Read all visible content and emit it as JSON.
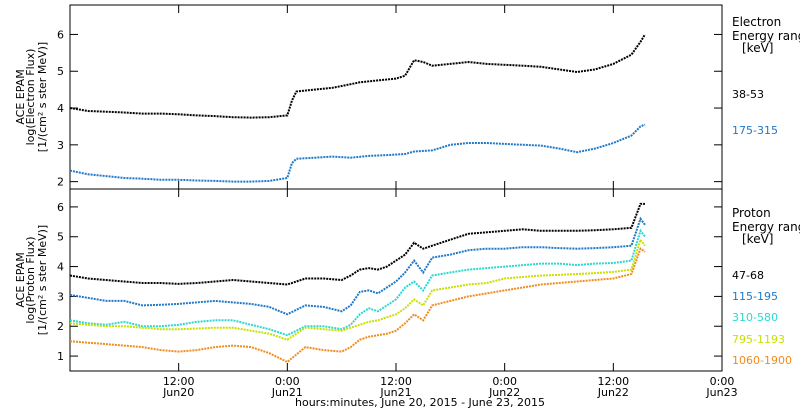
{
  "chart_data": [
    {
      "type": "line",
      "ylabel": "ACE EPAM",
      "ylabel2": "log(Electron Flux)",
      "ylabel3": "[1/(cm² s ster MeV)]",
      "ylim": [
        1.8,
        6.8
      ],
      "yticks": [
        "2",
        "3",
        "4",
        "5",
        "6"
      ],
      "legend_title": [
        "Electron",
        "Energy range",
        "[keV]"
      ],
      "series": [
        {
          "name": "38-53",
          "color": "#000000",
          "points": [
            [
              0,
              4.0
            ],
            [
              2,
              3.92
            ],
            [
              4,
              3.9
            ],
            [
              6,
              3.88
            ],
            [
              8,
              3.85
            ],
            [
              10,
              3.85
            ],
            [
              12,
              3.83
            ],
            [
              14,
              3.8
            ],
            [
              16,
              3.78
            ],
            [
              18,
              3.75
            ],
            [
              20,
              3.74
            ],
            [
              22,
              3.75
            ],
            [
              24,
              3.8
            ],
            [
              24.5,
              4.2
            ],
            [
              25,
              4.45
            ],
            [
              27,
              4.5
            ],
            [
              29,
              4.55
            ],
            [
              30,
              4.6
            ],
            [
              32,
              4.7
            ],
            [
              34,
              4.75
            ],
            [
              36,
              4.8
            ],
            [
              37,
              4.88
            ],
            [
              38,
              5.3
            ],
            [
              39,
              5.25
            ],
            [
              40,
              5.15
            ],
            [
              42,
              5.2
            ],
            [
              44,
              5.25
            ],
            [
              46,
              5.2
            ],
            [
              50,
              5.15
            ],
            [
              52,
              5.12
            ],
            [
              54,
              5.05
            ],
            [
              56,
              4.98
            ],
            [
              58,
              5.05
            ],
            [
              60,
              5.2
            ],
            [
              62,
              5.45
            ],
            [
              63,
              5.8
            ],
            [
              63.5,
              6.0
            ]
          ]
        },
        {
          "name": "175-315",
          "color": "#1f78c8",
          "points": [
            [
              0,
              2.3
            ],
            [
              2,
              2.2
            ],
            [
              4,
              2.15
            ],
            [
              6,
              2.1
            ],
            [
              8,
              2.08
            ],
            [
              10,
              2.05
            ],
            [
              12,
              2.05
            ],
            [
              14,
              2.03
            ],
            [
              16,
              2.02
            ],
            [
              18,
              2.0
            ],
            [
              20,
              2.0
            ],
            [
              22,
              2.02
            ],
            [
              24,
              2.1
            ],
            [
              24.5,
              2.5
            ],
            [
              25,
              2.62
            ],
            [
              27,
              2.65
            ],
            [
              29,
              2.68
            ],
            [
              31,
              2.65
            ],
            [
              33,
              2.7
            ],
            [
              35,
              2.72
            ],
            [
              37,
              2.75
            ],
            [
              38,
              2.82
            ],
            [
              40,
              2.85
            ],
            [
              42,
              3.0
            ],
            [
              44,
              3.05
            ],
            [
              46,
              3.05
            ],
            [
              50,
              3.0
            ],
            [
              52,
              2.98
            ],
            [
              54,
              2.9
            ],
            [
              56,
              2.8
            ],
            [
              58,
              2.9
            ],
            [
              60,
              3.05
            ],
            [
              62,
              3.25
            ],
            [
              63,
              3.5
            ],
            [
              63.5,
              3.55
            ]
          ]
        }
      ]
    },
    {
      "type": "line",
      "ylabel": "ACE EPAM",
      "ylabel2": "log(Proton Flux)",
      "ylabel3": "[1/(cm² s ster MeV)]",
      "ylim": [
        0.5,
        6.6
      ],
      "yticks": [
        "1",
        "2",
        "3",
        "4",
        "5",
        "6"
      ],
      "legend_title": [
        "Proton",
        "Energy range",
        "[keV]"
      ],
      "xlabel": "hours:minutes, June 20, 2015 - June 23, 2015",
      "xlim": [
        0,
        72
      ],
      "xticks": [
        {
          "x": 12,
          "time": "12:00",
          "date": "Jun20"
        },
        {
          "x": 24,
          "time": "0:00",
          "date": "Jun21"
        },
        {
          "x": 36,
          "time": "12:00",
          "date": "Jun21"
        },
        {
          "x": 48,
          "time": "0:00",
          "date": "Jun22"
        },
        {
          "x": 60,
          "time": "12:00",
          "date": "Jun22"
        },
        {
          "x": 72,
          "time": "0:00",
          "date": "Jun23"
        }
      ],
      "series": [
        {
          "name": "47-68",
          "color": "#000000",
          "points": [
            [
              0,
              3.7
            ],
            [
              2,
              3.6
            ],
            [
              4,
              3.55
            ],
            [
              6,
              3.5
            ],
            [
              8,
              3.45
            ],
            [
              10,
              3.45
            ],
            [
              12,
              3.42
            ],
            [
              14,
              3.45
            ],
            [
              16,
              3.5
            ],
            [
              18,
              3.55
            ],
            [
              20,
              3.5
            ],
            [
              22,
              3.45
            ],
            [
              24,
              3.4
            ],
            [
              26,
              3.6
            ],
            [
              28,
              3.6
            ],
            [
              30,
              3.55
            ],
            [
              31,
              3.7
            ],
            [
              32,
              3.9
            ],
            [
              33,
              3.95
            ],
            [
              34,
              3.9
            ],
            [
              35,
              4.0
            ],
            [
              36,
              4.2
            ],
            [
              37,
              4.4
            ],
            [
              38,
              4.8
            ],
            [
              39,
              4.6
            ],
            [
              40,
              4.7
            ],
            [
              42,
              4.9
            ],
            [
              44,
              5.1
            ],
            [
              46,
              5.15
            ],
            [
              48,
              5.2
            ],
            [
              50,
              5.25
            ],
            [
              52,
              5.2
            ],
            [
              54,
              5.2
            ],
            [
              56,
              5.2
            ],
            [
              58,
              5.22
            ],
            [
              60,
              5.25
            ],
            [
              62,
              5.3
            ],
            [
              63,
              6.1
            ],
            [
              63.5,
              6.1
            ]
          ]
        },
        {
          "name": "115-195",
          "color": "#1f78c8",
          "points": [
            [
              0,
              3.05
            ],
            [
              2,
              2.95
            ],
            [
              4,
              2.85
            ],
            [
              6,
              2.85
            ],
            [
              8,
              2.7
            ],
            [
              10,
              2.72
            ],
            [
              12,
              2.75
            ],
            [
              14,
              2.8
            ],
            [
              16,
              2.85
            ],
            [
              18,
              2.8
            ],
            [
              20,
              2.75
            ],
            [
              22,
              2.65
            ],
            [
              24,
              2.4
            ],
            [
              26,
              2.7
            ],
            [
              28,
              2.65
            ],
            [
              30,
              2.5
            ],
            [
              31,
              2.7
            ],
            [
              32,
              3.15
            ],
            [
              33,
              3.2
            ],
            [
              34,
              3.1
            ],
            [
              35,
              3.3
            ],
            [
              36,
              3.5
            ],
            [
              37,
              3.8
            ],
            [
              38,
              4.2
            ],
            [
              39,
              3.8
            ],
            [
              40,
              4.3
            ],
            [
              42,
              4.4
            ],
            [
              44,
              4.55
            ],
            [
              46,
              4.6
            ],
            [
              48,
              4.6
            ],
            [
              50,
              4.65
            ],
            [
              52,
              4.65
            ],
            [
              54,
              4.62
            ],
            [
              56,
              4.6
            ],
            [
              58,
              4.62
            ],
            [
              60,
              4.65
            ],
            [
              62,
              4.7
            ],
            [
              63,
              5.6
            ],
            [
              63.5,
              5.4
            ]
          ]
        },
        {
          "name": "310-580",
          "color": "#2bd8d0",
          "points": [
            [
              0,
              2.2
            ],
            [
              2,
              2.1
            ],
            [
              4,
              2.05
            ],
            [
              6,
              2.15
            ],
            [
              8,
              2.0
            ],
            [
              10,
              2.0
            ],
            [
              12,
              2.05
            ],
            [
              14,
              2.15
            ],
            [
              16,
              2.2
            ],
            [
              18,
              2.2
            ],
            [
              20,
              2.05
            ],
            [
              22,
              1.9
            ],
            [
              24,
              1.7
            ],
            [
              26,
              2.0
            ],
            [
              28,
              2.0
            ],
            [
              30,
              1.9
            ],
            [
              31,
              2.05
            ],
            [
              32,
              2.4
            ],
            [
              33,
              2.6
            ],
            [
              34,
              2.5
            ],
            [
              35,
              2.7
            ],
            [
              36,
              2.9
            ],
            [
              37,
              3.3
            ],
            [
              38,
              3.5
            ],
            [
              39,
              3.2
            ],
            [
              40,
              3.7
            ],
            [
              42,
              3.8
            ],
            [
              44,
              3.9
            ],
            [
              46,
              3.95
            ],
            [
              48,
              4.0
            ],
            [
              50,
              4.05
            ],
            [
              52,
              4.1
            ],
            [
              54,
              4.1
            ],
            [
              56,
              4.05
            ],
            [
              58,
              4.1
            ],
            [
              60,
              4.12
            ],
            [
              62,
              4.2
            ],
            [
              63,
              5.2
            ],
            [
              63.5,
              5.0
            ]
          ]
        },
        {
          "name": "795-1193",
          "color": "#c8e000",
          "points": [
            [
              0,
              2.1
            ],
            [
              2,
              2.05
            ],
            [
              4,
              2.0
            ],
            [
              6,
              2.0
            ],
            [
              8,
              1.95
            ],
            [
              10,
              1.9
            ],
            [
              12,
              1.9
            ],
            [
              14,
              1.92
            ],
            [
              16,
              1.95
            ],
            [
              18,
              1.95
            ],
            [
              20,
              1.85
            ],
            [
              22,
              1.75
            ],
            [
              24,
              1.55
            ],
            [
              26,
              1.95
            ],
            [
              28,
              1.9
            ],
            [
              30,
              1.85
            ],
            [
              31,
              1.95
            ],
            [
              32,
              2.05
            ],
            [
              33,
              2.15
            ],
            [
              34,
              2.2
            ],
            [
              35,
              2.3
            ],
            [
              36,
              2.4
            ],
            [
              37,
              2.6
            ],
            [
              38,
              2.9
            ],
            [
              39,
              2.7
            ],
            [
              40,
              3.2
            ],
            [
              42,
              3.3
            ],
            [
              44,
              3.4
            ],
            [
              46,
              3.45
            ],
            [
              48,
              3.6
            ],
            [
              50,
              3.65
            ],
            [
              52,
              3.7
            ],
            [
              54,
              3.72
            ],
            [
              56,
              3.75
            ],
            [
              58,
              3.78
            ],
            [
              60,
              3.82
            ],
            [
              62,
              3.9
            ],
            [
              63,
              4.9
            ],
            [
              63.5,
              4.7
            ]
          ]
        },
        {
          "name": "1060-1900",
          "color": "#f08c1e",
          "points": [
            [
              0,
              1.5
            ],
            [
              2,
              1.45
            ],
            [
              4,
              1.4
            ],
            [
              6,
              1.35
            ],
            [
              8,
              1.3
            ],
            [
              10,
              1.2
            ],
            [
              12,
              1.15
            ],
            [
              14,
              1.2
            ],
            [
              16,
              1.3
            ],
            [
              18,
              1.35
            ],
            [
              20,
              1.3
            ],
            [
              22,
              1.1
            ],
            [
              24,
              0.8
            ],
            [
              26,
              1.3
            ],
            [
              28,
              1.2
            ],
            [
              30,
              1.15
            ],
            [
              31,
              1.3
            ],
            [
              32,
              1.55
            ],
            [
              33,
              1.65
            ],
            [
              34,
              1.7
            ],
            [
              35,
              1.75
            ],
            [
              36,
              1.85
            ],
            [
              37,
              2.1
            ],
            [
              38,
              2.4
            ],
            [
              39,
              2.2
            ],
            [
              40,
              2.7
            ],
            [
              42,
              2.85
            ],
            [
              44,
              3.0
            ],
            [
              46,
              3.1
            ],
            [
              48,
              3.2
            ],
            [
              50,
              3.3
            ],
            [
              52,
              3.4
            ],
            [
              54,
              3.45
            ],
            [
              56,
              3.5
            ],
            [
              58,
              3.55
            ],
            [
              60,
              3.6
            ],
            [
              62,
              3.75
            ],
            [
              63,
              4.6
            ],
            [
              63.5,
              4.5
            ]
          ]
        }
      ]
    }
  ]
}
